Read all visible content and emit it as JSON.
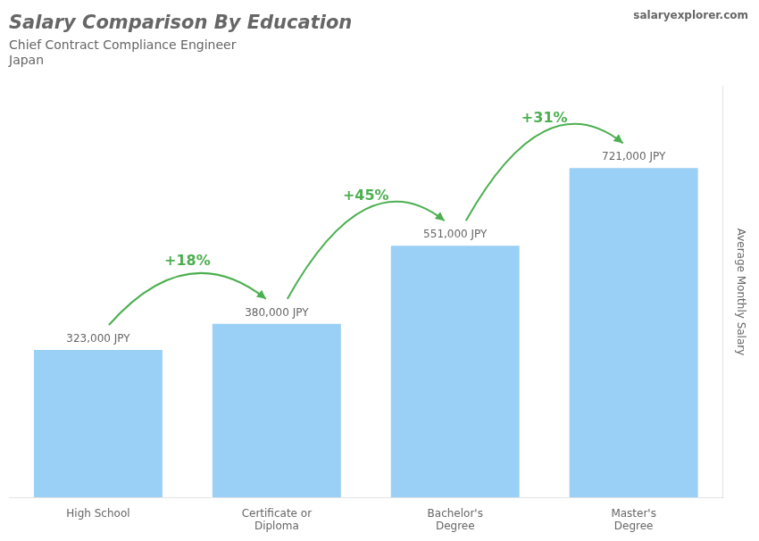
{
  "chart_data": {
    "type": "bar",
    "title": "Salary Comparison By Education",
    "subtitle": [
      "Chief Contract Compliance Engineer",
      "Japan"
    ],
    "watermark": "salaryexplorer.com",
    "ylabel": "Average Monthly Salary",
    "categories": [
      "High School",
      "Certificate or\nDiploma",
      "Bachelor's\nDegree",
      "Master's\nDegree"
    ],
    "values": [
      323000,
      380000,
      551000,
      721000
    ],
    "value_labels": [
      "323,000 JPY",
      "380,000 JPY",
      "551,000 JPY",
      "721,000 JPY"
    ],
    "data_labels": true,
    "annotations": [
      {
        "text": "+18%",
        "from": 0,
        "to": 1
      },
      {
        "text": "+45%",
        "from": 1,
        "to": 2
      },
      {
        "text": "+31%",
        "from": 2,
        "to": 3
      }
    ],
    "ylim": [
      0,
      900000
    ],
    "grid": false,
    "tick_labels": "x"
  }
}
